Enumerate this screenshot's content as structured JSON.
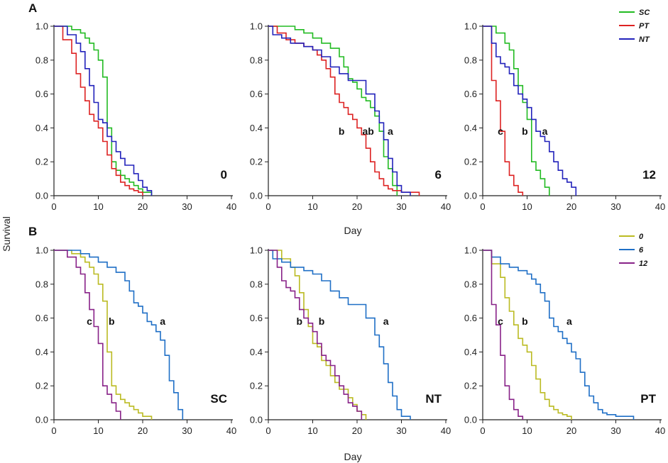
{
  "figure": {
    "row_labels": [
      "A",
      "B"
    ],
    "ylabel": "Survival",
    "xlabel": "Day"
  },
  "colors": {
    "SC": "#22bb22",
    "PT": "#dd2222",
    "NT": "#2222bb",
    "d0": "#bbbb22",
    "d6": "#1f6fc6",
    "d12": "#882288",
    "axis": "#222222"
  },
  "chart_data": [
    {
      "type": "line",
      "panel": "A1",
      "label": "0",
      "xlim": [
        0,
        40
      ],
      "ylim": [
        0,
        1
      ],
      "xticks": [
        "0",
        "10",
        "20",
        "30",
        "40"
      ],
      "yticks": [
        "0.0",
        "0.2",
        "0.4",
        "0.6",
        "0.8",
        "1.0"
      ],
      "series": [
        {
          "name": "SC",
          "color_key": "SC",
          "x": [
            0,
            4,
            6,
            7,
            8,
            9,
            10,
            11,
            12,
            13,
            14,
            15,
            16,
            17,
            18,
            19,
            20,
            22
          ],
          "y": [
            1.0,
            0.98,
            0.96,
            0.93,
            0.9,
            0.86,
            0.8,
            0.7,
            0.4,
            0.2,
            0.15,
            0.12,
            0.1,
            0.08,
            0.06,
            0.04,
            0.02,
            0.0
          ]
        },
        {
          "name": "PT",
          "color_key": "PT",
          "x": [
            0,
            2,
            4,
            5,
            6,
            7,
            8,
            9,
            10,
            11,
            12,
            13,
            14,
            15,
            16,
            17,
            18,
            19,
            20
          ],
          "y": [
            1.0,
            0.92,
            0.84,
            0.72,
            0.64,
            0.56,
            0.48,
            0.44,
            0.4,
            0.32,
            0.24,
            0.16,
            0.12,
            0.08,
            0.06,
            0.04,
            0.03,
            0.02,
            0.0
          ]
        },
        {
          "name": "NT",
          "color_key": "NT",
          "x": [
            0,
            3,
            5,
            6,
            7,
            8,
            9,
            10,
            11,
            12,
            13,
            14,
            15,
            16,
            18,
            19,
            20,
            21,
            22
          ],
          "y": [
            1.0,
            0.95,
            0.9,
            0.85,
            0.75,
            0.65,
            0.55,
            0.45,
            0.43,
            0.35,
            0.32,
            0.26,
            0.22,
            0.18,
            0.13,
            0.09,
            0.05,
            0.03,
            0.0
          ]
        }
      ],
      "significance": []
    },
    {
      "type": "line",
      "panel": "A2",
      "label": "6",
      "xlim": [
        0,
        40
      ],
      "ylim": [
        0,
        1
      ],
      "xticks": [
        "0",
        "10",
        "20",
        "30",
        "40"
      ],
      "yticks": [
        "0.0",
        "0.2",
        "0.4",
        "0.6",
        "0.8",
        "1.0"
      ],
      "series": [
        {
          "name": "SC",
          "color_key": "SC",
          "x": [
            0,
            6,
            8,
            10,
            12,
            14,
            16,
            17,
            18,
            19,
            20,
            21,
            22,
            23,
            24,
            25,
            26,
            27,
            28,
            29
          ],
          "y": [
            1.0,
            0.98,
            0.96,
            0.93,
            0.9,
            0.87,
            0.82,
            0.76,
            0.69,
            0.67,
            0.63,
            0.58,
            0.56,
            0.52,
            0.47,
            0.38,
            0.23,
            0.16,
            0.06,
            0.0
          ]
        },
        {
          "name": "PT",
          "color_key": "PT",
          "x": [
            0,
            2,
            4,
            6,
            8,
            10,
            11,
            12,
            13,
            14,
            15,
            16,
            17,
            18,
            19,
            20,
            21,
            22,
            23,
            24,
            25,
            26,
            27,
            28,
            30,
            34
          ],
          "y": [
            1.0,
            0.96,
            0.92,
            0.9,
            0.88,
            0.86,
            0.83,
            0.8,
            0.75,
            0.7,
            0.6,
            0.55,
            0.52,
            0.48,
            0.45,
            0.4,
            0.36,
            0.28,
            0.2,
            0.14,
            0.1,
            0.06,
            0.04,
            0.03,
            0.02,
            0.0
          ]
        },
        {
          "name": "NT",
          "color_key": "NT",
          "x": [
            0,
            1,
            3,
            5,
            8,
            10,
            12,
            14,
            16,
            18,
            20,
            22,
            24,
            25,
            26,
            27,
            28,
            29,
            30,
            32
          ],
          "y": [
            1.0,
            0.95,
            0.93,
            0.9,
            0.88,
            0.86,
            0.82,
            0.76,
            0.72,
            0.68,
            0.68,
            0.6,
            0.5,
            0.43,
            0.33,
            0.22,
            0.14,
            0.06,
            0.02,
            0.0
          ]
        }
      ],
      "significance": [
        {
          "text": "b",
          "x": 16.5,
          "y": 0.36
        },
        {
          "text": "ab",
          "x": 22.5,
          "y": 0.36
        },
        {
          "text": "a",
          "x": 27.5,
          "y": 0.36
        }
      ]
    },
    {
      "type": "line",
      "panel": "A3",
      "label": "12",
      "xlim": [
        0,
        40
      ],
      "ylim": [
        0,
        1
      ],
      "xticks": [
        "0",
        "10",
        "20",
        "30",
        "40"
      ],
      "yticks": [
        "0.0",
        "0.2",
        "0.4",
        "0.6",
        "0.8",
        "1.0"
      ],
      "series": [
        {
          "name": "SC",
          "color_key": "SC",
          "x": [
            0,
            3,
            5,
            6,
            7,
            8,
            9,
            10,
            11,
            12,
            13,
            14,
            15
          ],
          "y": [
            1.0,
            0.96,
            0.9,
            0.86,
            0.75,
            0.65,
            0.55,
            0.45,
            0.2,
            0.15,
            0.1,
            0.05,
            0.0
          ]
        },
        {
          "name": "PT",
          "color_key": "PT",
          "x": [
            0,
            2,
            3,
            4,
            5,
            6,
            7,
            8,
            9
          ],
          "y": [
            1.0,
            0.68,
            0.56,
            0.38,
            0.2,
            0.12,
            0.06,
            0.02,
            0.0
          ]
        },
        {
          "name": "NT",
          "color_key": "NT",
          "x": [
            0,
            2,
            3,
            4,
            5,
            6,
            7,
            8,
            9,
            10,
            11,
            12,
            13,
            14,
            15,
            16,
            17,
            18,
            19,
            20,
            21
          ],
          "y": [
            1.0,
            0.9,
            0.82,
            0.78,
            0.76,
            0.72,
            0.65,
            0.6,
            0.57,
            0.52,
            0.45,
            0.38,
            0.35,
            0.32,
            0.26,
            0.2,
            0.15,
            0.1,
            0.08,
            0.05,
            0.0
          ]
        }
      ],
      "significance": [
        {
          "text": "c",
          "x": 4.0,
          "y": 0.36
        },
        {
          "text": "b",
          "x": 9.5,
          "y": 0.36
        },
        {
          "text": "a",
          "x": 14.0,
          "y": 0.36
        }
      ],
      "legend": {
        "position": "top-right",
        "entries": [
          "SC",
          "PT",
          "NT"
        ]
      }
    },
    {
      "type": "line",
      "panel": "B1",
      "label": "SC",
      "xlim": [
        0,
        40
      ],
      "ylim": [
        0,
        1
      ],
      "xticks": [
        "0",
        "10",
        "20",
        "30",
        "40"
      ],
      "yticks": [
        "0.0",
        "0.2",
        "0.4",
        "0.6",
        "0.8",
        "1.0"
      ],
      "series": [
        {
          "name": "0",
          "color_key": "d0",
          "x": [
            0,
            4,
            6,
            7,
            8,
            9,
            10,
            11,
            12,
            13,
            14,
            15,
            16,
            17,
            18,
            19,
            20,
            22
          ],
          "y": [
            1.0,
            0.98,
            0.96,
            0.93,
            0.9,
            0.86,
            0.8,
            0.7,
            0.4,
            0.2,
            0.15,
            0.12,
            0.1,
            0.08,
            0.06,
            0.04,
            0.02,
            0.0
          ]
        },
        {
          "name": "6",
          "color_key": "d6",
          "x": [
            0,
            6,
            8,
            10,
            12,
            14,
            16,
            17,
            18,
            19,
            20,
            21,
            22,
            23,
            24,
            25,
            26,
            27,
            28,
            29
          ],
          "y": [
            1.0,
            0.98,
            0.96,
            0.93,
            0.9,
            0.87,
            0.82,
            0.76,
            0.69,
            0.67,
            0.63,
            0.58,
            0.56,
            0.52,
            0.47,
            0.38,
            0.23,
            0.16,
            0.06,
            0.0
          ]
        },
        {
          "name": "12",
          "color_key": "d12",
          "x": [
            0,
            3,
            5,
            6,
            7,
            8,
            9,
            10,
            11,
            12,
            13,
            14,
            15
          ],
          "y": [
            1.0,
            0.96,
            0.9,
            0.86,
            0.75,
            0.65,
            0.55,
            0.45,
            0.2,
            0.15,
            0.1,
            0.05,
            0.0
          ]
        }
      ],
      "significance": [
        {
          "text": "c",
          "x": 8.0,
          "y": 0.56
        },
        {
          "text": "b",
          "x": 13.0,
          "y": 0.56
        },
        {
          "text": "a",
          "x": 24.5,
          "y": 0.56
        }
      ]
    },
    {
      "type": "line",
      "panel": "B2",
      "label": "NT",
      "xlim": [
        0,
        40
      ],
      "ylim": [
        0,
        1
      ],
      "xticks": [
        "0",
        "10",
        "20",
        "30",
        "40"
      ],
      "yticks": [
        "0.0",
        "0.2",
        "0.4",
        "0.6",
        "0.8",
        "1.0"
      ],
      "series": [
        {
          "name": "0",
          "color_key": "d0",
          "x": [
            0,
            3,
            5,
            6,
            7,
            8,
            9,
            10,
            11,
            12,
            13,
            14,
            15,
            16,
            18,
            19,
            20,
            21,
            22
          ],
          "y": [
            1.0,
            0.95,
            0.9,
            0.85,
            0.75,
            0.65,
            0.55,
            0.45,
            0.43,
            0.35,
            0.32,
            0.26,
            0.22,
            0.18,
            0.13,
            0.09,
            0.05,
            0.03,
            0.0
          ]
        },
        {
          "name": "6",
          "color_key": "d6",
          "x": [
            0,
            1,
            3,
            5,
            8,
            10,
            12,
            14,
            16,
            18,
            20,
            22,
            24,
            25,
            26,
            27,
            28,
            29,
            30,
            32
          ],
          "y": [
            1.0,
            0.95,
            0.93,
            0.9,
            0.88,
            0.86,
            0.82,
            0.76,
            0.72,
            0.68,
            0.68,
            0.6,
            0.5,
            0.43,
            0.33,
            0.22,
            0.14,
            0.06,
            0.02,
            0.0
          ]
        },
        {
          "name": "12",
          "color_key": "d12",
          "x": [
            0,
            2,
            3,
            4,
            5,
            6,
            7,
            8,
            9,
            10,
            11,
            12,
            13,
            14,
            15,
            16,
            17,
            18,
            19,
            20,
            21
          ],
          "y": [
            1.0,
            0.9,
            0.82,
            0.78,
            0.76,
            0.72,
            0.65,
            0.6,
            0.57,
            0.52,
            0.45,
            0.38,
            0.35,
            0.32,
            0.26,
            0.2,
            0.15,
            0.1,
            0.08,
            0.05,
            0.0
          ]
        }
      ],
      "significance": [
        {
          "text": "b",
          "x": 7.0,
          "y": 0.56
        },
        {
          "text": "b",
          "x": 12.0,
          "y": 0.56
        },
        {
          "text": "a",
          "x": 26.5,
          "y": 0.56
        }
      ]
    },
    {
      "type": "line",
      "panel": "B3",
      "label": "PT",
      "xlim": [
        0,
        40
      ],
      "ylim": [
        0,
        1
      ],
      "xticks": [
        "0",
        "10",
        "20",
        "30",
        "40"
      ],
      "yticks": [
        "0.0",
        "0.2",
        "0.4",
        "0.6",
        "0.8",
        "1.0"
      ],
      "series": [
        {
          "name": "0",
          "color_key": "d0",
          "x": [
            0,
            2,
            4,
            5,
            6,
            7,
            8,
            9,
            10,
            11,
            12,
            13,
            14,
            15,
            16,
            17,
            18,
            19,
            20
          ],
          "y": [
            1.0,
            0.92,
            0.84,
            0.72,
            0.64,
            0.56,
            0.48,
            0.44,
            0.4,
            0.32,
            0.24,
            0.16,
            0.12,
            0.08,
            0.06,
            0.04,
            0.03,
            0.02,
            0.0
          ]
        },
        {
          "name": "6",
          "color_key": "d6",
          "x": [
            0,
            2,
            4,
            6,
            8,
            10,
            11,
            12,
            13,
            14,
            15,
            16,
            17,
            18,
            19,
            20,
            21,
            22,
            23,
            24,
            25,
            26,
            27,
            28,
            30,
            34
          ],
          "y": [
            1.0,
            0.96,
            0.92,
            0.9,
            0.88,
            0.86,
            0.83,
            0.8,
            0.75,
            0.7,
            0.6,
            0.55,
            0.52,
            0.48,
            0.45,
            0.4,
            0.36,
            0.28,
            0.2,
            0.14,
            0.1,
            0.06,
            0.04,
            0.03,
            0.02,
            0.0
          ]
        },
        {
          "name": "12",
          "color_key": "d12",
          "x": [
            0,
            2,
            3,
            4,
            5,
            6,
            7,
            8,
            9
          ],
          "y": [
            1.0,
            0.68,
            0.56,
            0.38,
            0.2,
            0.12,
            0.06,
            0.02,
            0.0
          ]
        }
      ],
      "significance": [
        {
          "text": "c",
          "x": 4.0,
          "y": 0.56
        },
        {
          "text": "b",
          "x": 9.5,
          "y": 0.56
        },
        {
          "text": "a",
          "x": 19.5,
          "y": 0.56
        }
      ],
      "legend": {
        "position": "top-right",
        "entries": [
          "0",
          "6",
          "12"
        ]
      }
    }
  ]
}
